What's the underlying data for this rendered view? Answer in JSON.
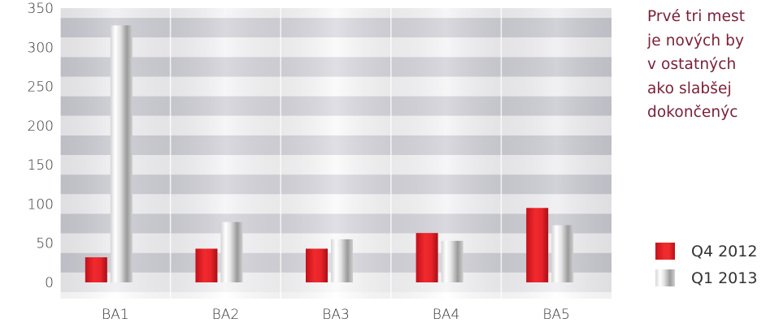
{
  "chart_data": {
    "type": "bar",
    "categories": [
      "BA1",
      "BA2",
      "BA3",
      "BA4",
      "BA5"
    ],
    "series": [
      {
        "name": "Q4 2012",
        "values": [
          32,
          43,
          43,
          63,
          95
        ],
        "color": "#e8202a"
      },
      {
        "name": "Q1 2013",
        "values": [
          328,
          77,
          55,
          53,
          73
        ],
        "color": "#c8c8c8"
      }
    ],
    "y_ticks": [
      "0",
      "50",
      "100",
      "150",
      "200",
      "250",
      "300",
      "350"
    ],
    "ylim": [
      0,
      350
    ],
    "grid": "alternating horizontal bands",
    "legend_position": "right"
  },
  "side_text": {
    "lines": [
      "Prvé tri mest",
      "je nových by",
      "v  ostatných",
      "ako  slabšej",
      "dokončenýc"
    ]
  },
  "legend": {
    "items": [
      {
        "label": "Q4 2012"
      },
      {
        "label": "Q1 2013"
      }
    ]
  }
}
